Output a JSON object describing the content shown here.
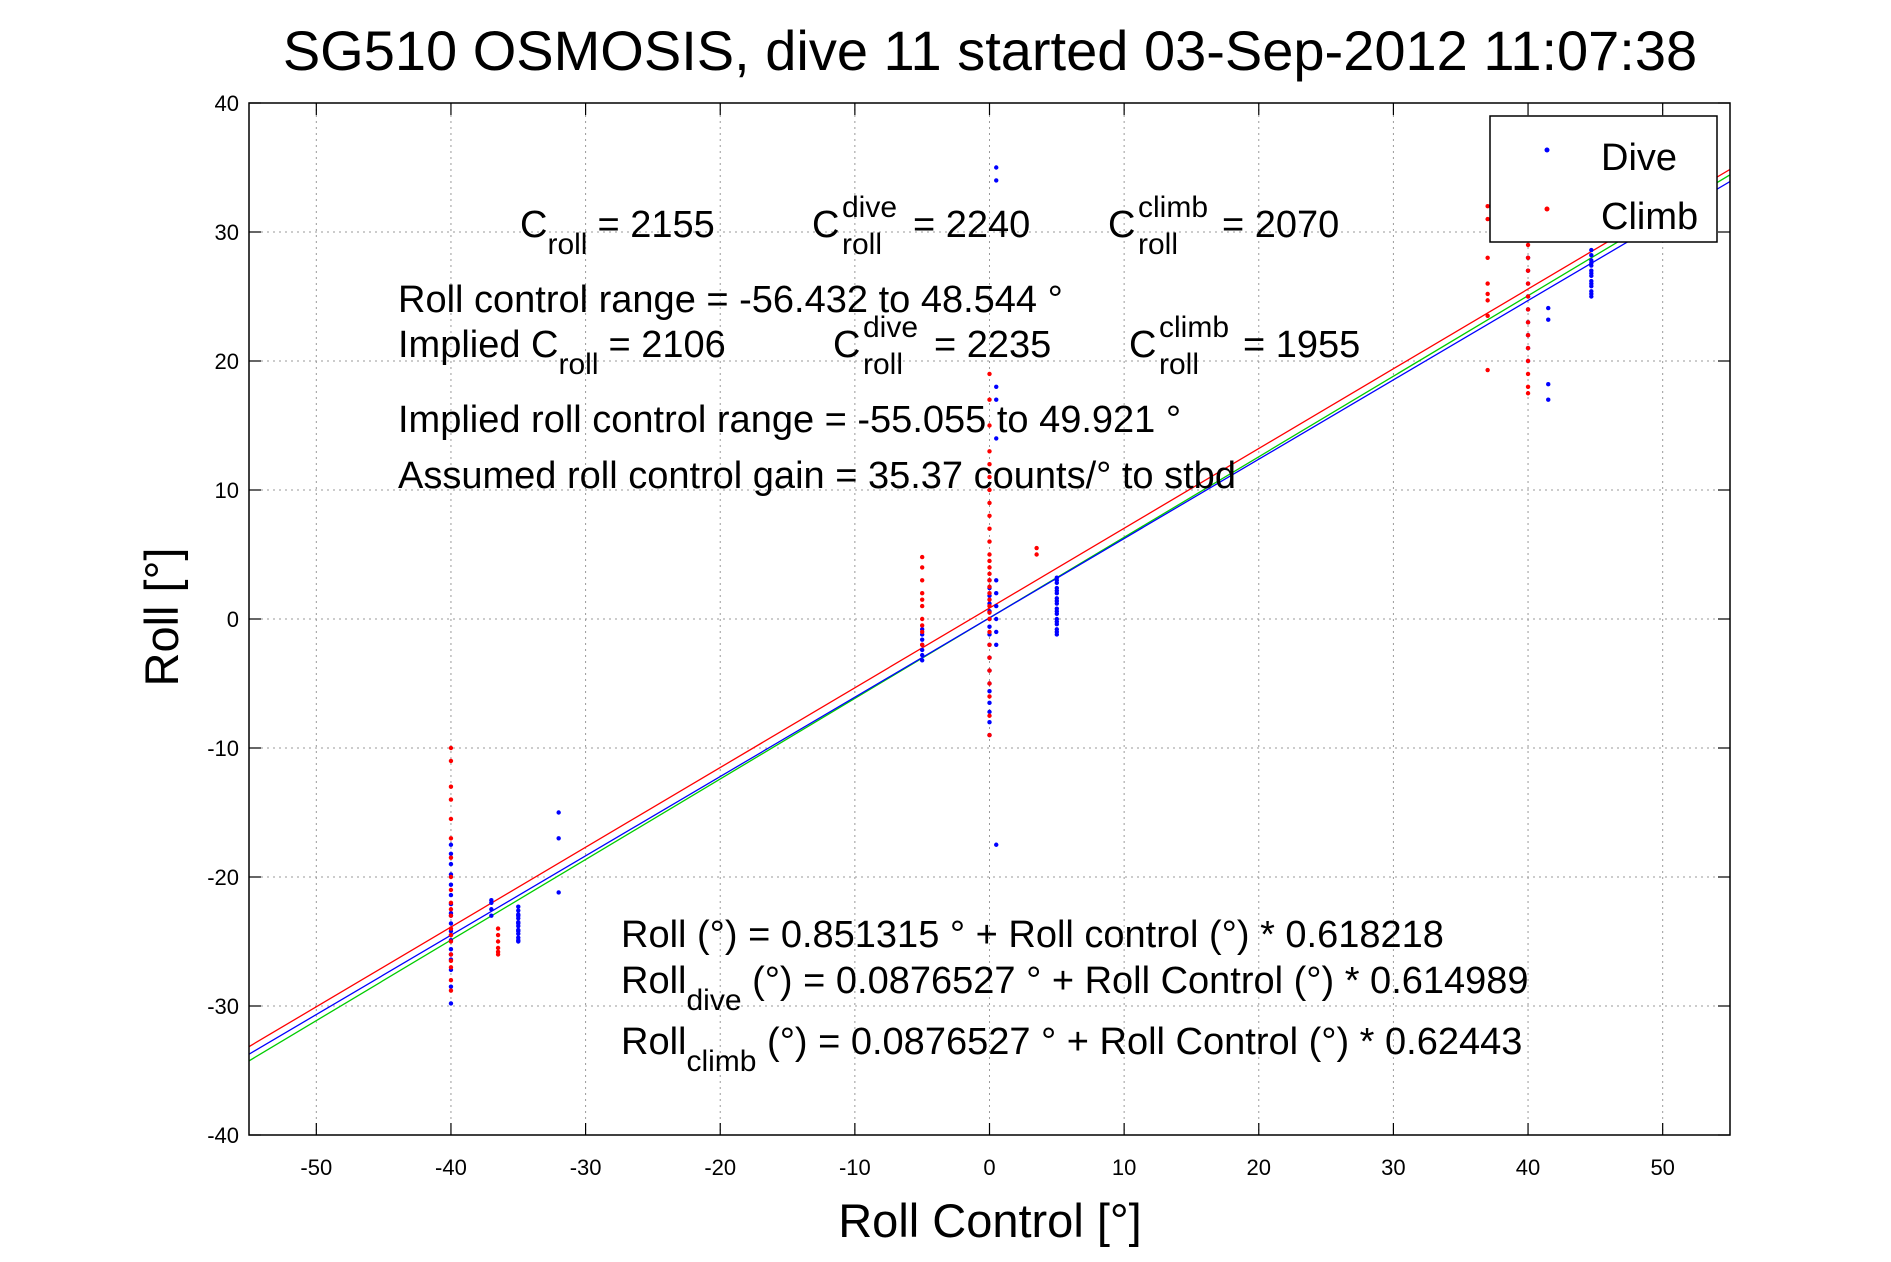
{
  "chart_data": {
    "type": "scatter",
    "title": "SG510 OSMOSIS, dive 11 started 03-Sep-2012 11:07:38",
    "xlabel": "Roll Control [°]",
    "ylabel": "Roll [°]",
    "xlim": [
      -55,
      55
    ],
    "ylim": [
      -40,
      40
    ],
    "xticks": [
      -50,
      -40,
      -30,
      -20,
      -10,
      0,
      10,
      20,
      30,
      40,
      50
    ],
    "yticks": [
      -40,
      -30,
      -20,
      -10,
      0,
      10,
      20,
      30,
      40
    ],
    "xtick_labels": [
      "-50",
      "-40",
      "-30",
      "-20",
      "-10",
      "0",
      "10",
      "20",
      "30",
      "40",
      "50"
    ],
    "ytick_labels": [
      "-40",
      "-30",
      "-20",
      "-10",
      "0",
      "10",
      "20",
      "30",
      "40"
    ],
    "grid": true,
    "legend_position": "top-right",
    "colors": {
      "dive": "#0000ff",
      "climb": "#ff0000",
      "fit_all": "#ff0000",
      "fit_dive": "#0000ff",
      "fit_climb": "#00cc00"
    },
    "series": [
      {
        "name": "Dive",
        "color": "#0000ff",
        "clusters": [
          {
            "x": -40.0,
            "y_values": [
              -29.8,
              -28.5,
              -27.2,
              -26.4,
              -25.6,
              -24.9,
              -24.2,
              -23.6,
              -22.8,
              -22.1,
              -21.4,
              -20.6,
              -19.8,
              -19.0,
              -18.2,
              -17.5,
              -23.0,
              -24.5,
              -26.0
            ]
          },
          {
            "x": -37.0,
            "y_values": [
              -23.0,
              -22.5,
              -22.0,
              -21.8
            ]
          },
          {
            "x": -35.0,
            "y_values": [
              -25.0,
              -24.7,
              -24.4,
              -24.1,
              -23.8,
              -23.5,
              -23.2,
              -22.9,
              -22.6,
              -22.3,
              -24.9,
              -24.2,
              -23.6,
              -23.0
            ]
          },
          {
            "x": -32.0,
            "y_values": [
              -21.2,
              -17.0,
              -15.0
            ]
          },
          {
            "x": -5.0,
            "y_values": [
              -3.2,
              -2.8,
              -2.4,
              -2.0,
              -1.6,
              -1.2,
              -0.8
            ]
          },
          {
            "x": 0.0,
            "y_values": [
              -8.0,
              -6.5,
              -5.0,
              -4.0,
              -3.0,
              -2.0,
              -1.2,
              -0.6,
              0.0,
              0.6,
              1.2,
              1.8,
              2.4,
              3.0,
              -9.0,
              -7.2,
              -5.6
            ]
          },
          {
            "x": 0.5,
            "y_values": [
              -17.5,
              -2.0,
              -1.0,
              0.0,
              1.0,
              2.0,
              3.0,
              14.0,
              17.0,
              18.0,
              34.0,
              35.0
            ]
          },
          {
            "x": 5.0,
            "y_values": [
              -1.2,
              -0.8,
              -0.4,
              0.0,
              0.4,
              0.8,
              1.2,
              1.6,
              2.0,
              2.4,
              2.8,
              3.2,
              -1.0,
              -0.2,
              0.6,
              1.4,
              2.2,
              3.0
            ]
          },
          {
            "x": 40.0,
            "y_values": [
              20.0,
              21.0,
              22.0,
              23.0,
              24.0,
              25.0,
              26.0,
              27.0,
              28.0
            ]
          },
          {
            "x": 41.5,
            "y_values": [
              17.0,
              18.2,
              23.2,
              24.1
            ]
          },
          {
            "x": 44.7,
            "y_values": [
              25.0,
              25.4,
              25.8,
              26.2,
              26.6,
              27.0,
              27.4,
              27.8,
              28.2,
              28.6,
              25.2,
              26.0,
              26.8,
              27.6
            ]
          }
        ]
      },
      {
        "name": "Climb",
        "color": "#ff0000",
        "clusters": [
          {
            "x": -40.0,
            "y_values": [
              -10.0,
              -11.0,
              -13.0,
              -14.0,
              -15.5,
              -17.0,
              -18.5,
              -20.0,
              -21.0,
              -22.0,
              -23.0,
              -24.0,
              -25.0,
              -26.0,
              -27.0,
              -28.0,
              -28.8,
              -22.5,
              -24.5,
              -26.5
            ]
          },
          {
            "x": -36.5,
            "y_values": [
              -26.0,
              -25.5,
              -25.0,
              -24.5,
              -24.0,
              -25.8
            ]
          },
          {
            "x": -5.0,
            "y_values": [
              -2.0,
              -1.0,
              0.0,
              1.0,
              2.0,
              3.0,
              4.0,
              4.8,
              -0.5,
              1.5
            ]
          },
          {
            "x": 0.0,
            "y_values": [
              -9.0,
              -7.5,
              -6.0,
              -5.0,
              -4.0,
              -3.0,
              -2.0,
              -1.0,
              0.0,
              0.5,
              1.0,
              1.5,
              2.0,
              2.5,
              3.0,
              3.5,
              4.0,
              4.5,
              5.0,
              6.0,
              7.0,
              8.0,
              9.0,
              10.0,
              11.0,
              12.0,
              13.0,
              15.0,
              17.0,
              19.0
            ]
          },
          {
            "x": 3.5,
            "y_values": [
              5.0,
              5.5
            ]
          },
          {
            "x": 37.0,
            "y_values": [
              19.3,
              23.5,
              24.7,
              25.2,
              26.0,
              28.0,
              31.0,
              32.0
            ]
          },
          {
            "x": 40.0,
            "y_values": [
              17.5,
              18.0,
              19.0,
              20.0,
              21.0,
              22.0,
              23.0,
              24.0,
              25.0,
              26.0,
              27.0,
              28.0,
              29.0,
              30.0
            ]
          }
        ]
      }
    ],
    "fit_lines": [
      {
        "id": "fit_all",
        "intercept": 0.851315,
        "slope": 0.618218,
        "color": "#ff0000"
      },
      {
        "id": "fit_climb",
        "intercept": 0.0876527,
        "slope": 0.62443,
        "color": "#00cc00"
      },
      {
        "id": "fit_dive",
        "intercept": 0.0876527,
        "slope": 0.614989,
        "color": "#0000ff"
      }
    ],
    "annotations": {
      "c_roll": {
        "main": "C",
        "sub": "roll",
        "value": "= 2155"
      },
      "c_roll_dive": {
        "main": "C",
        "sup": "dive",
        "sub": "roll",
        "value": "= 2240"
      },
      "c_roll_climb": {
        "main": "C",
        "sup": "climb",
        "sub": "roll",
        "value": "= 2070"
      },
      "roll_control_range": "Roll control range = -56.432 to 48.544 °",
      "implied_c_roll": {
        "prefix": "Implied C",
        "sub": "roll",
        "value": "= 2106"
      },
      "implied_c_roll_dive": {
        "main": "C",
        "sup": "dive",
        "sub": "roll",
        "value": "= 2235"
      },
      "implied_c_roll_climb": {
        "main": "C",
        "sup": "climb",
        "sub": "roll",
        "value": "= 1955"
      },
      "implied_roll_control_range": "Implied roll control range = -55.055 to 49.921 °",
      "assumed_gain": "Assumed roll control gain = 35.37 counts/° to stbd",
      "fit_eq_all": "Roll (°) = 0.851315 ° + Roll control (°) * 0.618218",
      "fit_eq_dive": {
        "main": "Roll",
        "sub": "dive",
        "rest": " (°) = 0.0876527 ° + Roll Control (°) * 0.614989"
      },
      "fit_eq_climb": {
        "main": "Roll",
        "sub": "climb",
        "rest": " (°) = 0.0876527 ° + Roll Control (°) * 0.62443"
      }
    }
  }
}
